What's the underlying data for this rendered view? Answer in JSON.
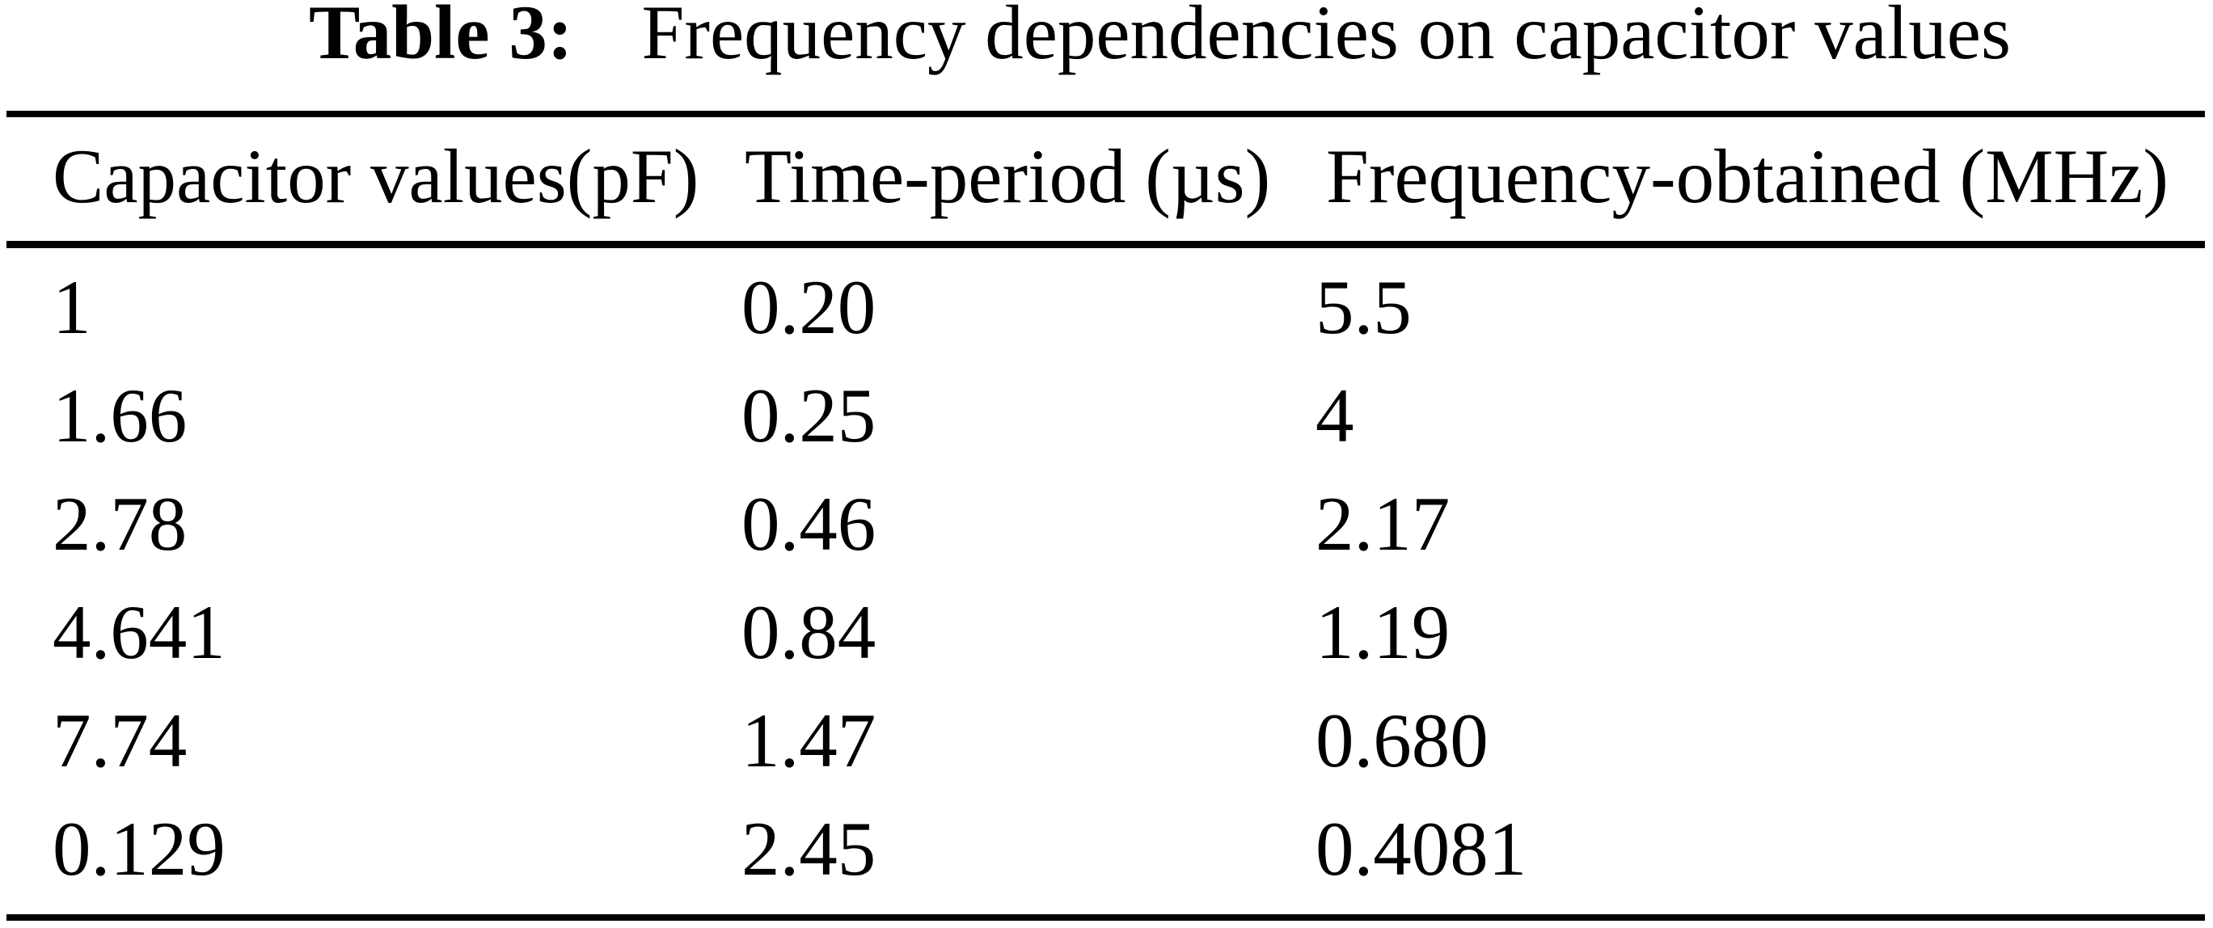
{
  "page": {
    "background": "#ffffff",
    "text_color": "#000000"
  },
  "caption": {
    "label": "Table 3:",
    "text": "Frequency dependencies on capacitor values"
  },
  "table": {
    "columns": [
      "Capacitor values(pF)",
      "Time-period (µs)",
      "Frequency-obtained (MHz)"
    ],
    "rows": [
      [
        "1",
        "0.20",
        "5.5"
      ],
      [
        "1.66",
        "0.25",
        "4"
      ],
      [
        "2.78",
        "0.46",
        "2.17"
      ],
      [
        "4.641",
        "0.84",
        "1.19"
      ],
      [
        "7.74",
        "1.47",
        "0.680"
      ],
      [
        "0.129",
        "2.45",
        "0.4081"
      ]
    ]
  },
  "chart_data": {
    "type": "table",
    "title": "Table 3: Frequency dependencies on capacitor values",
    "columns": [
      "Capacitor values(pF)",
      "Time-period (µs)",
      "Frequency-obtained (MHz)"
    ],
    "rows": [
      [
        1,
        0.2,
        5.5
      ],
      [
        1.66,
        0.25,
        4
      ],
      [
        2.78,
        0.46,
        2.17
      ],
      [
        4.641,
        0.84,
        1.19
      ],
      [
        7.74,
        1.47,
        0.68
      ],
      [
        0.129,
        2.45,
        0.4081
      ]
    ]
  }
}
